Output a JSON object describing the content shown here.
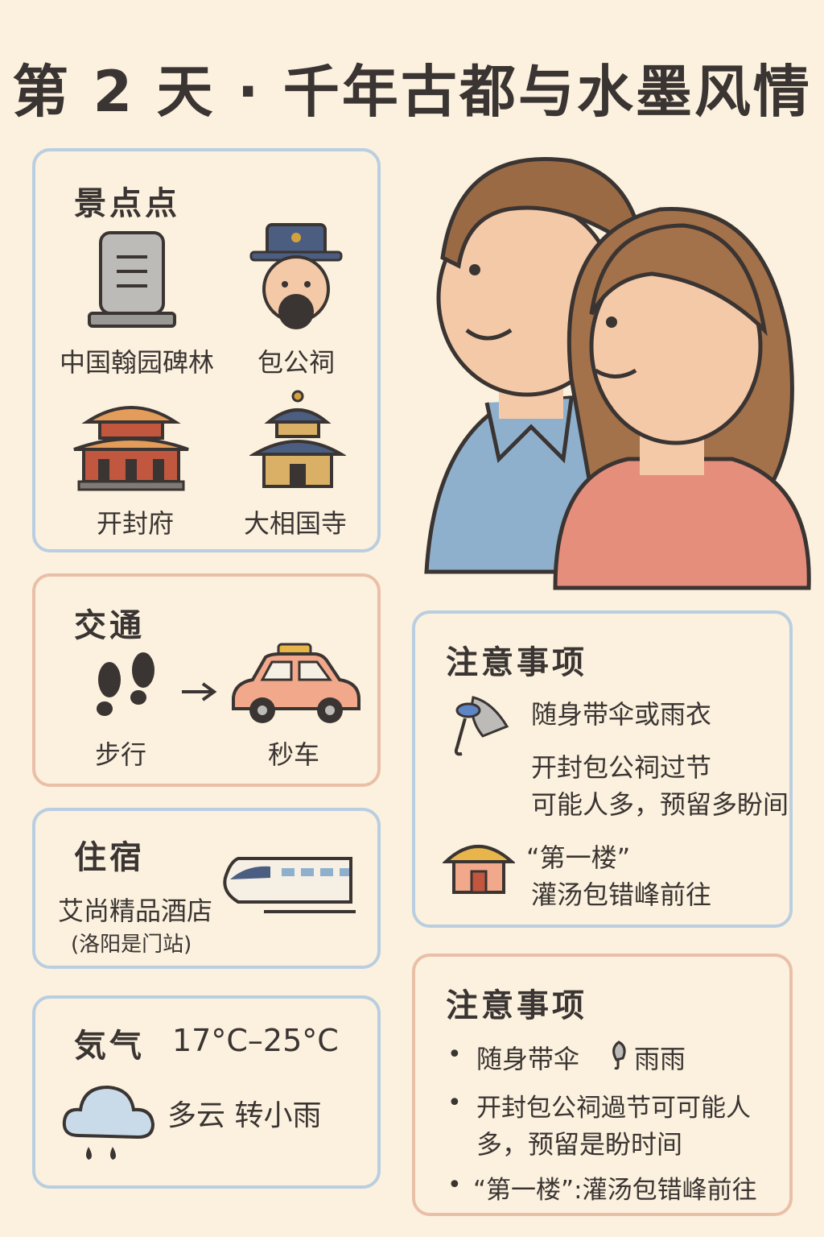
{
  "title": "第 2 天 · 千年古都与水墨风情",
  "attractions": {
    "heading": "景点点",
    "items": [
      "中国翰园碑林",
      "包公祠",
      "开封府",
      "大相国寺"
    ]
  },
  "transport": {
    "heading": "交通",
    "from": "步行",
    "to": "秒车"
  },
  "lodging": {
    "heading": "住宿",
    "hotel": "艾尚精品酒店",
    "near": "(洛阳是门站)"
  },
  "weather": {
    "heading": "気气",
    "temp": "17°C–25°C",
    "desc": "多云 转小雨"
  },
  "notes1": {
    "heading": "注意事项",
    "line1": "随身带伞或雨衣",
    "line2a": "开封包公祠过节",
    "line2b": "可能人多，预留多盼间",
    "line3a": "“第一楼”",
    "line3b": "灌汤包错峰前往"
  },
  "notes2": {
    "heading": "注意事项",
    "b1a": "随身带伞",
    "b1b": "雨雨",
    "b2a": "开封包公祠過节可可能人",
    "b2b": "多，预留是盼时间",
    "b3": "“第一楼”:灌汤包错峰前往"
  },
  "colors": {
    "background": "#fbf1de",
    "blue_border": "#b9cee0",
    "red_border": "#eabfa8"
  }
}
